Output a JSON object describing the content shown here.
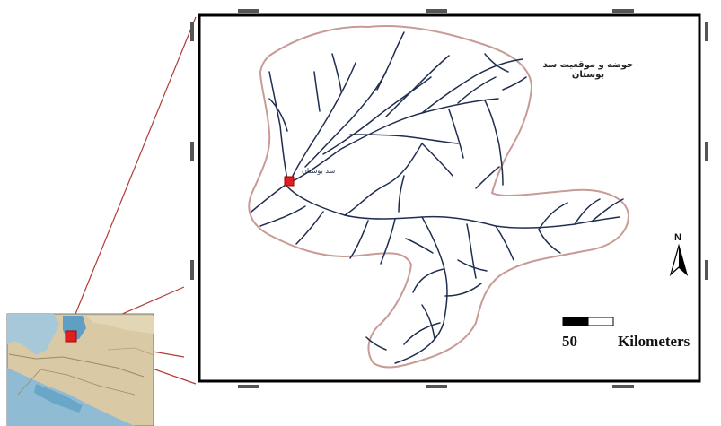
{
  "map": {
    "title": "حوضه و موقعیت سد بوستان",
    "dam_label": "سد بوستان",
    "scale_value": "50",
    "scale_unit": "Kilometers",
    "north_label": "N"
  },
  "colors": {
    "river": "#1f2d4f",
    "basin_outline": "#c89b96",
    "inset_line": "#b23a36",
    "dam_marker": "#e02020",
    "frame": "#000000"
  }
}
